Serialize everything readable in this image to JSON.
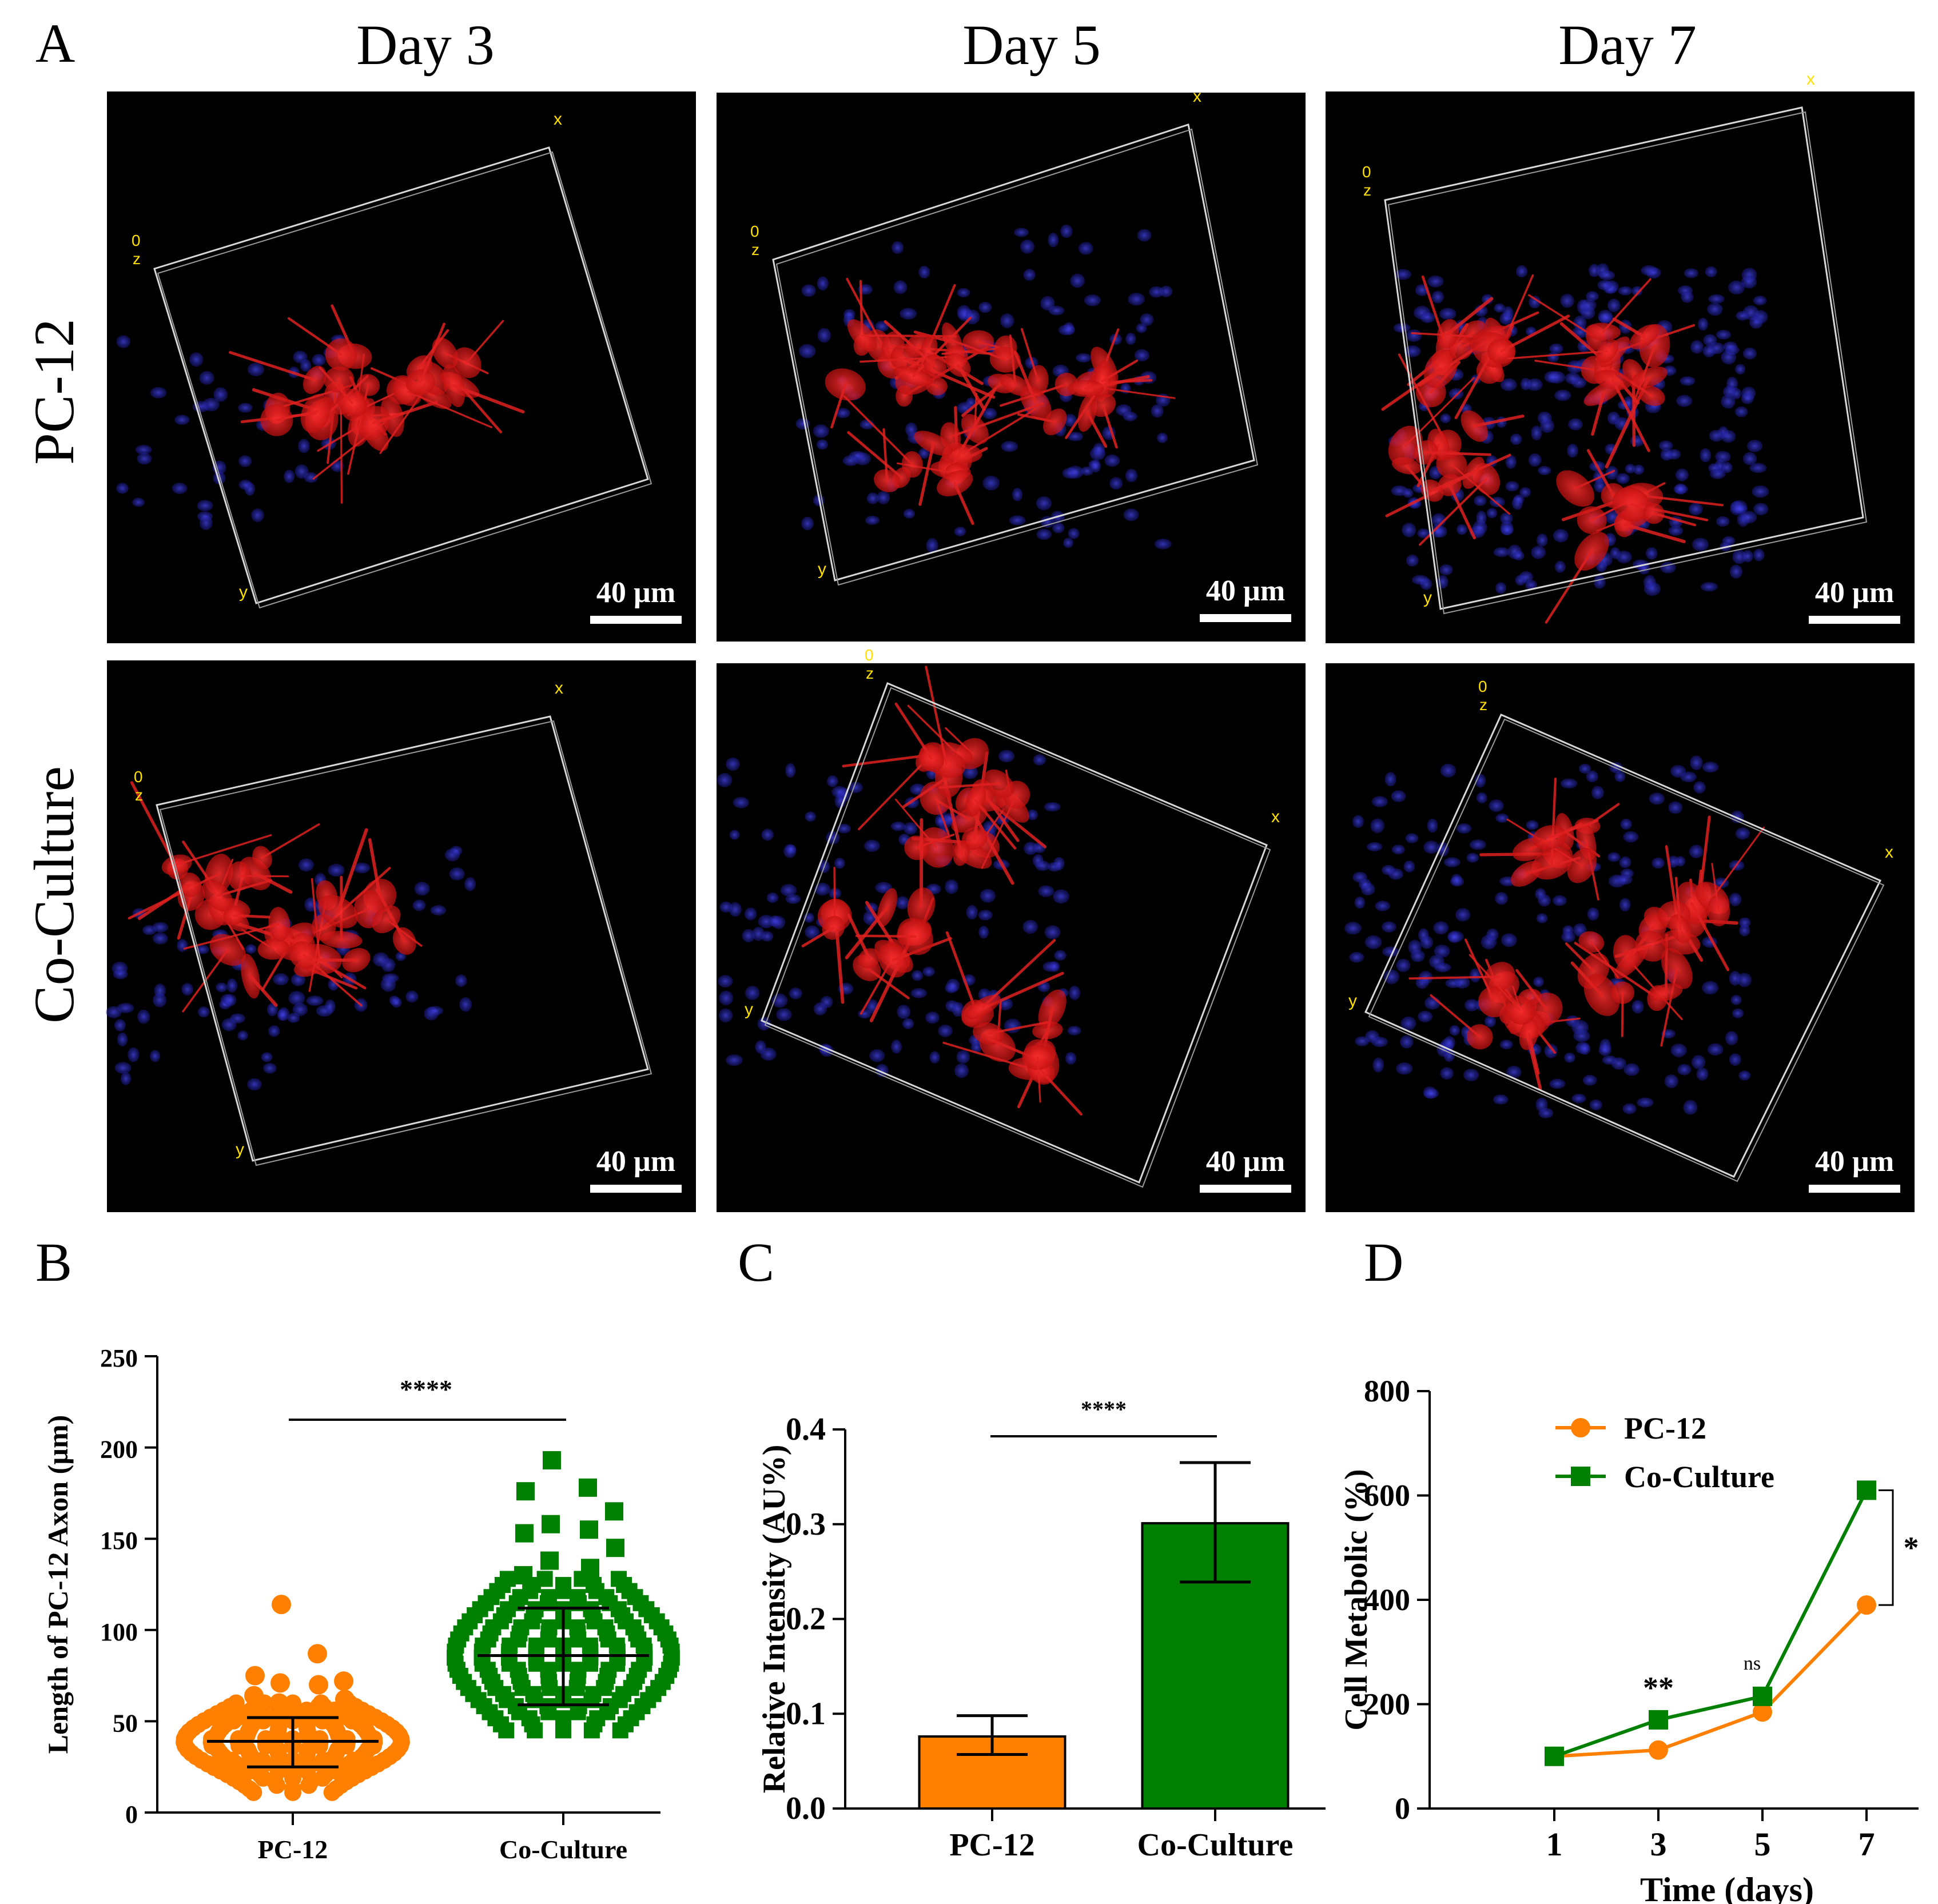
{
  "panel_letters": {
    "a": "A",
    "b": "B",
    "c": "C",
    "d": "D"
  },
  "panel_a": {
    "columns": [
      "Day 3",
      "Day 5",
      "Day 7"
    ],
    "rows": [
      "PC-12",
      "Co-Culture"
    ],
    "scale_bar_label": "40 µm",
    "axis_labels": {
      "x": "x",
      "y": "y",
      "z": "z",
      "origin": "0"
    },
    "colors": {
      "cells": "#e02020",
      "nuclei": "#2a2ad0",
      "box": "#d8d8d8",
      "axis_text": "#ffe000"
    }
  },
  "colors": {
    "pc12": "#ff8000",
    "coculture": "#008000"
  },
  "chart_data": [
    {
      "panel": "B",
      "type": "scatter",
      "ylabel": "Length of PC-12 Axon (µm)",
      "categories": [
        "PC-12",
        "Co-Culture"
      ],
      "ylim": [
        0,
        250
      ],
      "yticks": [
        0,
        50,
        100,
        150,
        200,
        250
      ],
      "series": [
        {
          "name": "PC-12",
          "mean": 39,
          "sd_low": 25,
          "sd_high": 52,
          "outliers": [
            114,
            87,
            75,
            72,
            71,
            70,
            64,
            62,
            60,
            58
          ]
        },
        {
          "name": "Co-Culture",
          "mean": 86,
          "sd_low": 59,
          "sd_high": 112,
          "outliers": [
            193,
            178,
            176,
            165,
            158,
            155,
            153,
            145,
            138,
            134,
            130
          ]
        }
      ],
      "significance": "****"
    },
    {
      "panel": "C",
      "type": "bar",
      "ylabel": "Relative Intensity (AU%)",
      "categories": [
        "PC-12",
        "Co-Culture"
      ],
      "values": [
        0.076,
        0.301
      ],
      "err_low": [
        0.057,
        0.239
      ],
      "err_high": [
        0.098,
        0.365
      ],
      "ylim": [
        0.0,
        0.4
      ],
      "yticks": [
        "0.0",
        "0.1",
        "0.2",
        "0.3",
        "0.4"
      ],
      "significance": "****"
    },
    {
      "panel": "D",
      "type": "line",
      "xlabel": "Time (days)",
      "ylabel": "Cell Metabolic (%)",
      "x": [
        1,
        3,
        5,
        7
      ],
      "xticks": [
        "1",
        "3",
        "5",
        "7"
      ],
      "ylim": [
        0,
        800
      ],
      "yticks": [
        "0",
        "200",
        "400",
        "600",
        "800"
      ],
      "series": [
        {
          "name": "PC-12",
          "values": [
            100,
            112,
            185,
            390
          ]
        },
        {
          "name": "Co-Culture",
          "values": [
            100,
            170,
            215,
            610
          ]
        }
      ],
      "annotations": [
        "**",
        "ns",
        "*"
      ],
      "legend": "top-left"
    }
  ]
}
